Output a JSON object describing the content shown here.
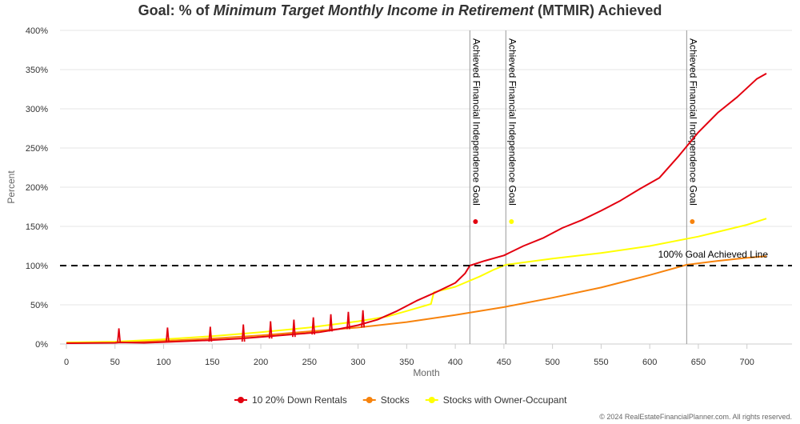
{
  "chart_data": {
    "type": "line",
    "title_prefix": "Goal: % of ",
    "title_italic": "Minimum Target Monthly Income in Retirement",
    "title_suffix": " (MTMIR) Achieved",
    "xlabel": "Month",
    "ylabel": "Percent",
    "xlim": [
      0,
      720
    ],
    "ylim": [
      0,
      400
    ],
    "x_ticks": [
      0,
      50,
      100,
      150,
      200,
      250,
      300,
      350,
      400,
      450,
      500,
      550,
      600,
      650,
      700
    ],
    "y_ticks": [
      0,
      50,
      100,
      150,
      200,
      250,
      300,
      350,
      400
    ],
    "y_tick_labels": [
      "0%",
      "50%",
      "100%",
      "150%",
      "200%",
      "250%",
      "300%",
      "350%",
      "400%"
    ],
    "grid": "horizontal",
    "legend_position": "bottom",
    "goal_line": {
      "y": 100,
      "label": "100% Goal Achieved Line"
    },
    "milestone_label": "Achieved Financial Independence Goal",
    "milestones": [
      {
        "x": 415,
        "color": "#e3000f"
      },
      {
        "x": 452,
        "color": "#ffff00"
      },
      {
        "x": 638,
        "color": "#f7830d"
      }
    ],
    "series": [
      {
        "name": "10 20% Down Rentals",
        "color": "#e3000f",
        "points": [
          [
            0,
            1
          ],
          [
            50,
            1.5
          ],
          [
            55,
            2
          ],
          [
            80,
            1.5
          ],
          [
            100,
            2.5
          ],
          [
            130,
            4
          ],
          [
            150,
            5
          ],
          [
            180,
            7
          ],
          [
            210,
            10
          ],
          [
            240,
            13
          ],
          [
            260,
            15
          ],
          [
            280,
            19
          ],
          [
            300,
            24
          ],
          [
            320,
            31
          ],
          [
            340,
            42
          ],
          [
            360,
            55
          ],
          [
            380,
            66
          ],
          [
            400,
            78
          ],
          [
            410,
            90
          ],
          [
            415,
            100
          ],
          [
            430,
            106
          ],
          [
            450,
            113
          ],
          [
            470,
            125
          ],
          [
            490,
            135
          ],
          [
            510,
            148
          ],
          [
            530,
            158
          ],
          [
            550,
            170
          ],
          [
            570,
            183
          ],
          [
            590,
            198
          ],
          [
            610,
            212
          ],
          [
            630,
            240
          ],
          [
            650,
            270
          ],
          [
            670,
            295
          ],
          [
            690,
            315
          ],
          [
            710,
            338
          ],
          [
            720,
            345
          ]
        ],
        "spikes": [
          [
            54,
            20
          ],
          [
            104,
            21
          ],
          [
            148,
            22
          ],
          [
            182,
            25
          ],
          [
            210,
            29
          ],
          [
            234,
            31
          ],
          [
            254,
            34
          ],
          [
            272,
            38
          ],
          [
            290,
            41
          ],
          [
            305,
            43
          ]
        ]
      },
      {
        "name": "Stocks",
        "color": "#f7830d",
        "points": [
          [
            0,
            1
          ],
          [
            50,
            2
          ],
          [
            100,
            4
          ],
          [
            150,
            7
          ],
          [
            200,
            11
          ],
          [
            250,
            16
          ],
          [
            300,
            21
          ],
          [
            350,
            28
          ],
          [
            400,
            37
          ],
          [
            450,
            47
          ],
          [
            500,
            59
          ],
          [
            550,
            72
          ],
          [
            600,
            88
          ],
          [
            638,
            101
          ],
          [
            670,
            106
          ],
          [
            700,
            110
          ],
          [
            720,
            112
          ]
        ]
      },
      {
        "name": "Stocks with Owner-Occupant",
        "color": "#ffff00",
        "points": [
          [
            0,
            2
          ],
          [
            50,
            3
          ],
          [
            100,
            6
          ],
          [
            150,
            10
          ],
          [
            200,
            15
          ],
          [
            250,
            21
          ],
          [
            300,
            29
          ],
          [
            330,
            35
          ],
          [
            350,
            42
          ],
          [
            375,
            51
          ],
          [
            378,
            66
          ],
          [
            400,
            73
          ],
          [
            425,
            86
          ],
          [
            440,
            95
          ],
          [
            452,
            101
          ],
          [
            500,
            109
          ],
          [
            550,
            116
          ],
          [
            600,
            125
          ],
          [
            650,
            137
          ],
          [
            700,
            152
          ],
          [
            720,
            160
          ]
        ]
      }
    ]
  },
  "copyright": "© 2024 RealEstateFinancialPlanner.com. All rights reserved."
}
